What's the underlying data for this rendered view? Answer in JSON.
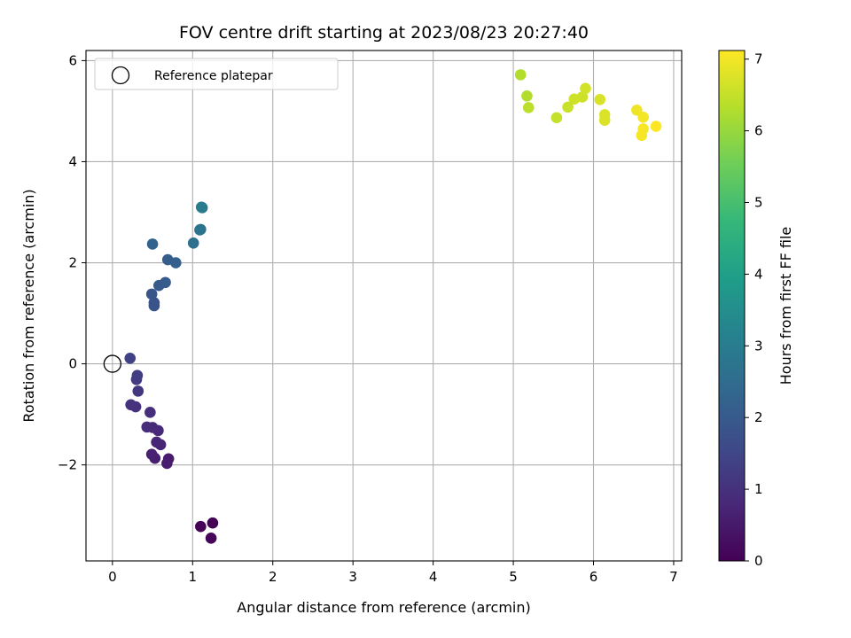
{
  "chart_data": {
    "type": "scatter",
    "title": "FOV centre drift starting at 2023/08/23 20:27:40",
    "xlabel": "Angular distance from reference (arcmin)",
    "ylabel": "Rotation from reference (arcmin)",
    "xlim": [
      -0.33,
      7.1
    ],
    "ylim": [
      -3.9,
      6.2
    ],
    "xticks": [
      0,
      1,
      2,
      3,
      4,
      5,
      6,
      7
    ],
    "yticks": [
      -2,
      0,
      2,
      4,
      6
    ],
    "ytick_labels": [
      "−2",
      "0",
      "2",
      "4",
      "6"
    ],
    "grid": true,
    "legend": {
      "position": "top-left",
      "entries": [
        "Reference platepar"
      ]
    },
    "reference_point": {
      "name": "Reference platepar",
      "x": 0,
      "y": 0,
      "marker": "open-circle"
    },
    "colorbar": {
      "label": "Hours from first FF file",
      "range": [
        0,
        7.12
      ],
      "ticks": [
        0,
        1,
        2,
        3,
        4,
        5,
        6,
        7
      ],
      "colormap": "viridis",
      "colors": [
        "#440154",
        "#482878",
        "#3e4a89",
        "#31688e",
        "#26828e",
        "#1f9e89",
        "#35b779",
        "#6ece58",
        "#b5de2b",
        "#fde725"
      ]
    },
    "points": [
      {
        "x": 1.25,
        "y": -3.15,
        "c": 0.0
      },
      {
        "x": 1.1,
        "y": -3.22,
        "c": 0.05
      },
      {
        "x": 1.23,
        "y": -3.45,
        "c": 0.1
      },
      {
        "x": 0.7,
        "y": -1.88,
        "c": 0.5
      },
      {
        "x": 0.68,
        "y": -1.97,
        "c": 0.55
      },
      {
        "x": 0.53,
        "y": -1.87,
        "c": 0.6
      },
      {
        "x": 0.49,
        "y": -1.79,
        "c": 0.65
      },
      {
        "x": 0.6,
        "y": -1.6,
        "c": 0.7
      },
      {
        "x": 0.55,
        "y": -1.55,
        "c": 0.75
      },
      {
        "x": 0.57,
        "y": -1.32,
        "c": 0.8
      },
      {
        "x": 0.5,
        "y": -1.26,
        "c": 0.85
      },
      {
        "x": 0.43,
        "y": -1.25,
        "c": 0.9
      },
      {
        "x": 0.47,
        "y": -0.96,
        "c": 0.95
      },
      {
        "x": 0.29,
        "y": -0.85,
        "c": 1.0
      },
      {
        "x": 0.23,
        "y": -0.81,
        "c": 1.05
      },
      {
        "x": 0.32,
        "y": -0.54,
        "c": 1.1
      },
      {
        "x": 0.3,
        "y": -0.31,
        "c": 1.2
      },
      {
        "x": 0.31,
        "y": -0.23,
        "c": 1.25
      },
      {
        "x": 0.22,
        "y": 0.11,
        "c": 1.4
      },
      {
        "x": 0.52,
        "y": 1.15,
        "c": 1.8
      },
      {
        "x": 0.52,
        "y": 1.21,
        "c": 1.85
      },
      {
        "x": 0.49,
        "y": 1.38,
        "c": 1.9
      },
      {
        "x": 0.58,
        "y": 1.55,
        "c": 2.0
      },
      {
        "x": 0.66,
        "y": 1.61,
        "c": 2.05
      },
      {
        "x": 0.79,
        "y": 2.0,
        "c": 2.15
      },
      {
        "x": 0.69,
        "y": 2.06,
        "c": 2.1
      },
      {
        "x": 0.5,
        "y": 2.37,
        "c": 2.25
      },
      {
        "x": 1.01,
        "y": 2.39,
        "c": 2.6
      },
      {
        "x": 1.09,
        "y": 2.65,
        "c": 2.7
      },
      {
        "x": 1.1,
        "y": 2.66,
        "c": 2.75
      },
      {
        "x": 1.12,
        "y": 3.09,
        "c": 2.9
      },
      {
        "x": 1.11,
        "y": 3.1,
        "c": 2.95
      },
      {
        "x": 5.09,
        "y": 5.72,
        "c": 6.3
      },
      {
        "x": 5.17,
        "y": 5.3,
        "c": 6.3
      },
      {
        "x": 5.19,
        "y": 5.07,
        "c": 6.4
      },
      {
        "x": 5.54,
        "y": 4.87,
        "c": 6.5
      },
      {
        "x": 5.68,
        "y": 5.08,
        "c": 6.55
      },
      {
        "x": 5.76,
        "y": 5.24,
        "c": 6.6
      },
      {
        "x": 5.86,
        "y": 5.28,
        "c": 6.6
      },
      {
        "x": 5.9,
        "y": 5.45,
        "c": 6.65
      },
      {
        "x": 6.08,
        "y": 5.23,
        "c": 6.7
      },
      {
        "x": 6.14,
        "y": 4.93,
        "c": 6.75
      },
      {
        "x": 6.14,
        "y": 4.82,
        "c": 6.75
      },
      {
        "x": 6.54,
        "y": 5.02,
        "c": 6.95
      },
      {
        "x": 6.62,
        "y": 4.88,
        "c": 7.0
      },
      {
        "x": 6.62,
        "y": 4.65,
        "c": 7.05
      },
      {
        "x": 6.6,
        "y": 4.52,
        "c": 7.05
      },
      {
        "x": 6.78,
        "y": 4.7,
        "c": 7.1
      }
    ]
  }
}
